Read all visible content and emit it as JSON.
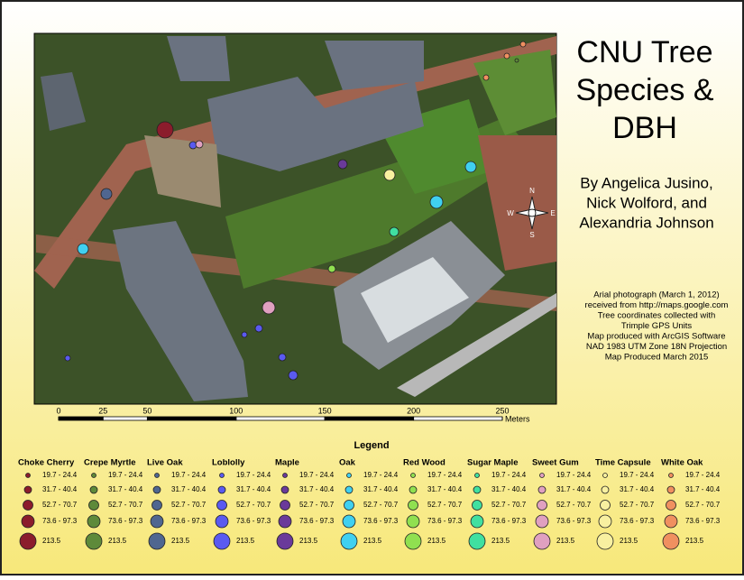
{
  "title": [
    "CNU Tree",
    "Species &",
    "DBH"
  ],
  "authors": [
    "By Angelica Jusino,",
    "Nick Wolford, and",
    "Alexandria Johnson"
  ],
  "notes": [
    "Arial photograph (March 1, 2012)",
    "received from  http://maps.google.com",
    "Tree coordinates collected with",
    "Trimple GPS Units",
    "Map produced with ArcGIS Software",
    "NAD 1983 UTM Zone 18N Projection",
    "Map Produced March 2015"
  ],
  "compass": [
    "N",
    "E",
    "S",
    "W"
  ],
  "scale_bar": {
    "ticks": [
      0,
      25,
      50,
      100,
      150,
      200,
      250
    ],
    "unit": "Meters"
  },
  "legend": {
    "title": "Legend",
    "classes": [
      "19.7 - 24.4",
      "31.7 - 40.4",
      "52.7 - 70.7",
      "73.6 - 97.3",
      "213.5"
    ],
    "species": [
      {
        "name": "Choke Cherry",
        "color": "#8b1c2c"
      },
      {
        "name": "Crepe Myrtle",
        "color": "#5e8a3a"
      },
      {
        "name": "Live Oak",
        "color": "#4f6690"
      },
      {
        "name": "Loblolly",
        "color": "#5a5af0"
      },
      {
        "name": "Maple",
        "color": "#6a3a9a"
      },
      {
        "name": "Oak",
        "color": "#40d0f0"
      },
      {
        "name": "Red Wood",
        "color": "#90e050"
      },
      {
        "name": "Sugar Maple",
        "color": "#40e0a0"
      },
      {
        "name": "Sweet Gum",
        "color": "#e0a0c0"
      },
      {
        "name": "Time Capsule",
        "color": "#f8f0a0"
      },
      {
        "name": "White Oak",
        "color": "#f09060"
      }
    ]
  }
}
